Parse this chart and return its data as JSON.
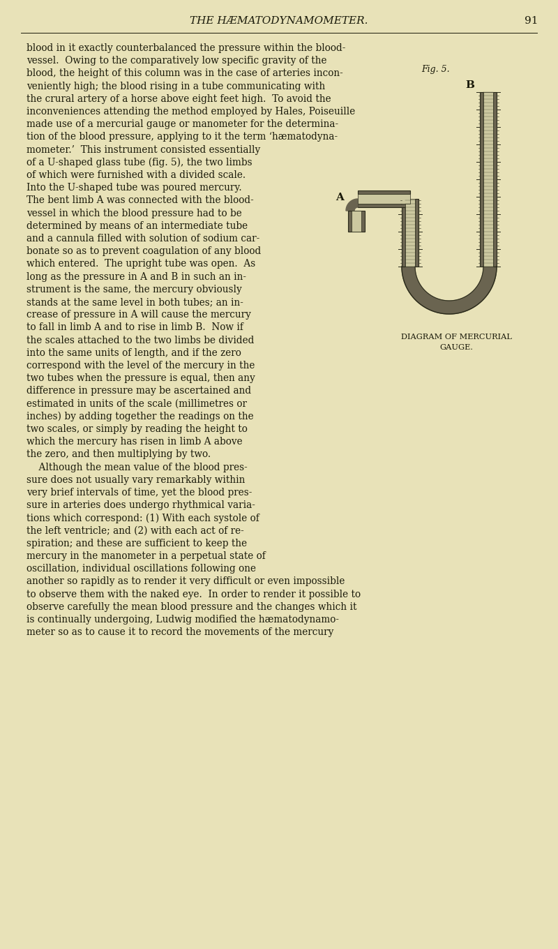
{
  "background_color": "#e8e2b8",
  "title_text": "THE HÆMATODYNAMOMETER.",
  "page_number": "91",
  "fig_label": "Fig. 5.",
  "diagram_label": "DIAGRAM OF MERCURIAL\nGAUGE.",
  "label_A": "A",
  "label_B": "B",
  "text_color": "#1a1a0a",
  "diagram_color": "#2a2a1a",
  "tube_fill_dark": "#6a6450",
  "tube_fill_light": "#ccc8a0",
  "mercury_color": "#a0a090",
  "main_paragraphs": [
    "blood in it exactly counterbalanced the pressure within the blood-",
    "vessel.  Owing to the comparatively low specific gravity of the",
    "blood, the height of this column was in the case of arteries incon-",
    "veniently high; the blood rising in a tube communicating with",
    "the crural artery of a horse above eight feet high.  To avoid the",
    "inconveniences attending the method employed by Hales, Poiseuille",
    "made use of a mercurial gauge or manometer for the determina-",
    "tion of the blood pressure, applying to it the term ‘hæmatodyna-",
    "mometer.’  This instrument consisted essentially",
    "of a U-shaped glass tube (fig. 5), the two limbs",
    "of which were furnished with a divided scale.",
    "Into the U-shaped tube was poured mercury.",
    "The bent limb A was connected with the blood-",
    "vessel in which the blood pressure had to be",
    "determined by means of an intermediate tube",
    "and a cannula filled with solution of sodium car-",
    "bonate so as to prevent coagulation of any blood",
    "which entered.  The upright tube was open.  As",
    "long as the pressure in A and B in such an in-",
    "strument is the same, the mercury obviously",
    "stands at the same level in both tubes; an in-",
    "crease of pressure in A will cause the mercury",
    "to fall in limb A and to rise in limb B.  Now if",
    "the scales attached to the two limbs be divided",
    "into the same units of length, and if the zero",
    "correspond with the level of the mercury in the",
    "two tubes when the pressure is equal, then any",
    "difference in pressure may be ascertained and",
    "estimated in units of the scale (millimetres or",
    "inches) by adding together the readings on the",
    "two scales, or simply by reading the height to",
    "which the mercury has risen in limb A above",
    "the zero, and then multiplying by two.",
    "    Although the mean value of the blood pres-",
    "sure does not usually vary remarkably within",
    "very brief intervals of time, yet the blood pres-",
    "sure in arteries does undergo rhythmical varia-",
    "tions which correspond: (1) With each systole of",
    "the left ventricle; and (2) with each act of re-",
    "spiration; and these are sufficient to keep the",
    "mercury in the manometer in a perpetual state of",
    "oscillation, individual oscillations following one",
    "another so rapidly as to render it very difficult or even impossible",
    "to observe them with the naked eye.  In order to render it possible to",
    "observe carefully the mean blood pressure and the changes which it",
    "is continually undergoing, Ludwig modified the hæmatodynamo-",
    "meter so as to cause it to record the movements of the mercury"
  ]
}
